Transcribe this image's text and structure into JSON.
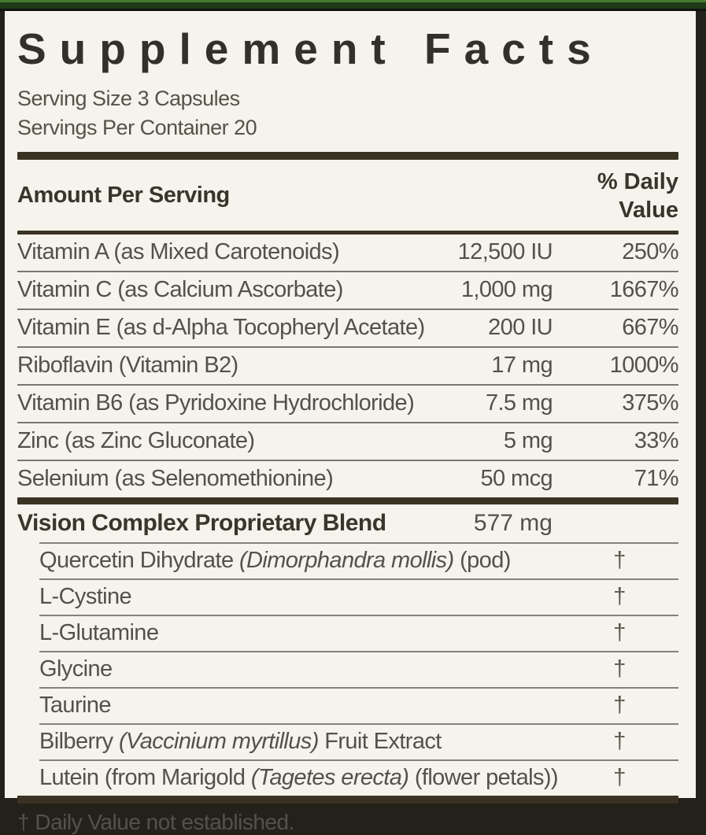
{
  "label": {
    "title": "Supplement Facts",
    "serving_size": "Serving Size 3 Capsules",
    "servings_per_container": "Servings Per Container 20",
    "header": {
      "amount_per_serving": "Amount Per Serving",
      "daily_value_line1": "% Daily",
      "daily_value_line2": "Value"
    },
    "nutrients": [
      {
        "name": "Vitamin A (as Mixed Carotenoids)",
        "amount": "12,500 IU",
        "dv": "250%"
      },
      {
        "name": "Vitamin C (as Calcium Ascorbate)",
        "amount": "1,000 mg",
        "dv": "1667%"
      },
      {
        "name": "Vitamin E (as d-Alpha Tocopheryl Acetate)",
        "amount": "200 IU",
        "dv": "667%"
      },
      {
        "name": "Riboflavin (Vitamin B2)",
        "amount": "17 mg",
        "dv": "1000%"
      },
      {
        "name": "Vitamin B6 (as Pyridoxine Hydrochloride)",
        "amount": "7.5 mg",
        "dv": "375%"
      },
      {
        "name": "Zinc (as Zinc Gluconate)",
        "amount": "5 mg",
        "dv": "33%"
      },
      {
        "name": "Selenium (as Selenomethionine)",
        "amount": "50 mcg",
        "dv": "71%"
      }
    ],
    "blend": {
      "name": "Vision Complex Proprietary Blend",
      "amount": "577 mg",
      "ingredients": [
        {
          "pre": "Quercetin Dihydrate ",
          "latin": "(Dimorphandra mollis)",
          "post": " (pod)",
          "dv": "†"
        },
        {
          "pre": "L-Cystine",
          "latin": "",
          "post": "",
          "dv": "†"
        },
        {
          "pre": "L-Glutamine",
          "latin": "",
          "post": "",
          "dv": "†"
        },
        {
          "pre": "Glycine",
          "latin": "",
          "post": "",
          "dv": "†"
        },
        {
          "pre": "Taurine",
          "latin": "",
          "post": "",
          "dv": "†"
        },
        {
          "pre": "Bilberry ",
          "latin": "(Vaccinium myrtillus)",
          "post": " Fruit Extract",
          "dv": "†"
        },
        {
          "pre": "Lutein (from Marigold ",
          "latin": "(Tagetes erecta)",
          "post": " (flower petals))",
          "dv": "†"
        }
      ]
    },
    "footnote": "† Daily Value not established.",
    "colors": {
      "label_background": "#f5f3ec",
      "text": "#55514a",
      "bold_text": "#39352c",
      "rule_bar": "#3a3323",
      "hairline": "#7b776e",
      "top_strip_green": "#1e3a18",
      "top_strip_highlight": "#477a31",
      "outer_edge": "#23211a"
    }
  }
}
